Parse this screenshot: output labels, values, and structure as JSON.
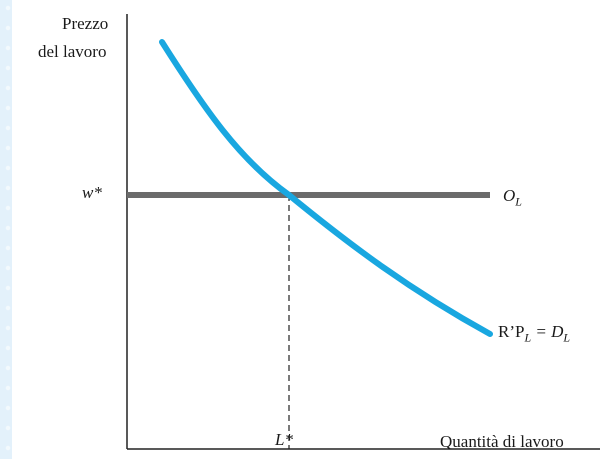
{
  "y_axis_label_line1": "Prezzo",
  "y_axis_label_line2": "del lavoro",
  "x_axis_label": "Quantità di lavoro",
  "wage_tick": "w*",
  "quantity_tick": "L*",
  "supply_label_main": "O",
  "supply_label_sub": "L",
  "demand_label_prefix": "R’P",
  "demand_label_sub1": "L",
  "demand_label_eq": " = D",
  "demand_label_sub2": "L",
  "colors": {
    "demand_curve": "#19a7e0",
    "supply_line": "#6b6b6b",
    "axis": "#222222",
    "background": "#e3f1fb"
  }
}
